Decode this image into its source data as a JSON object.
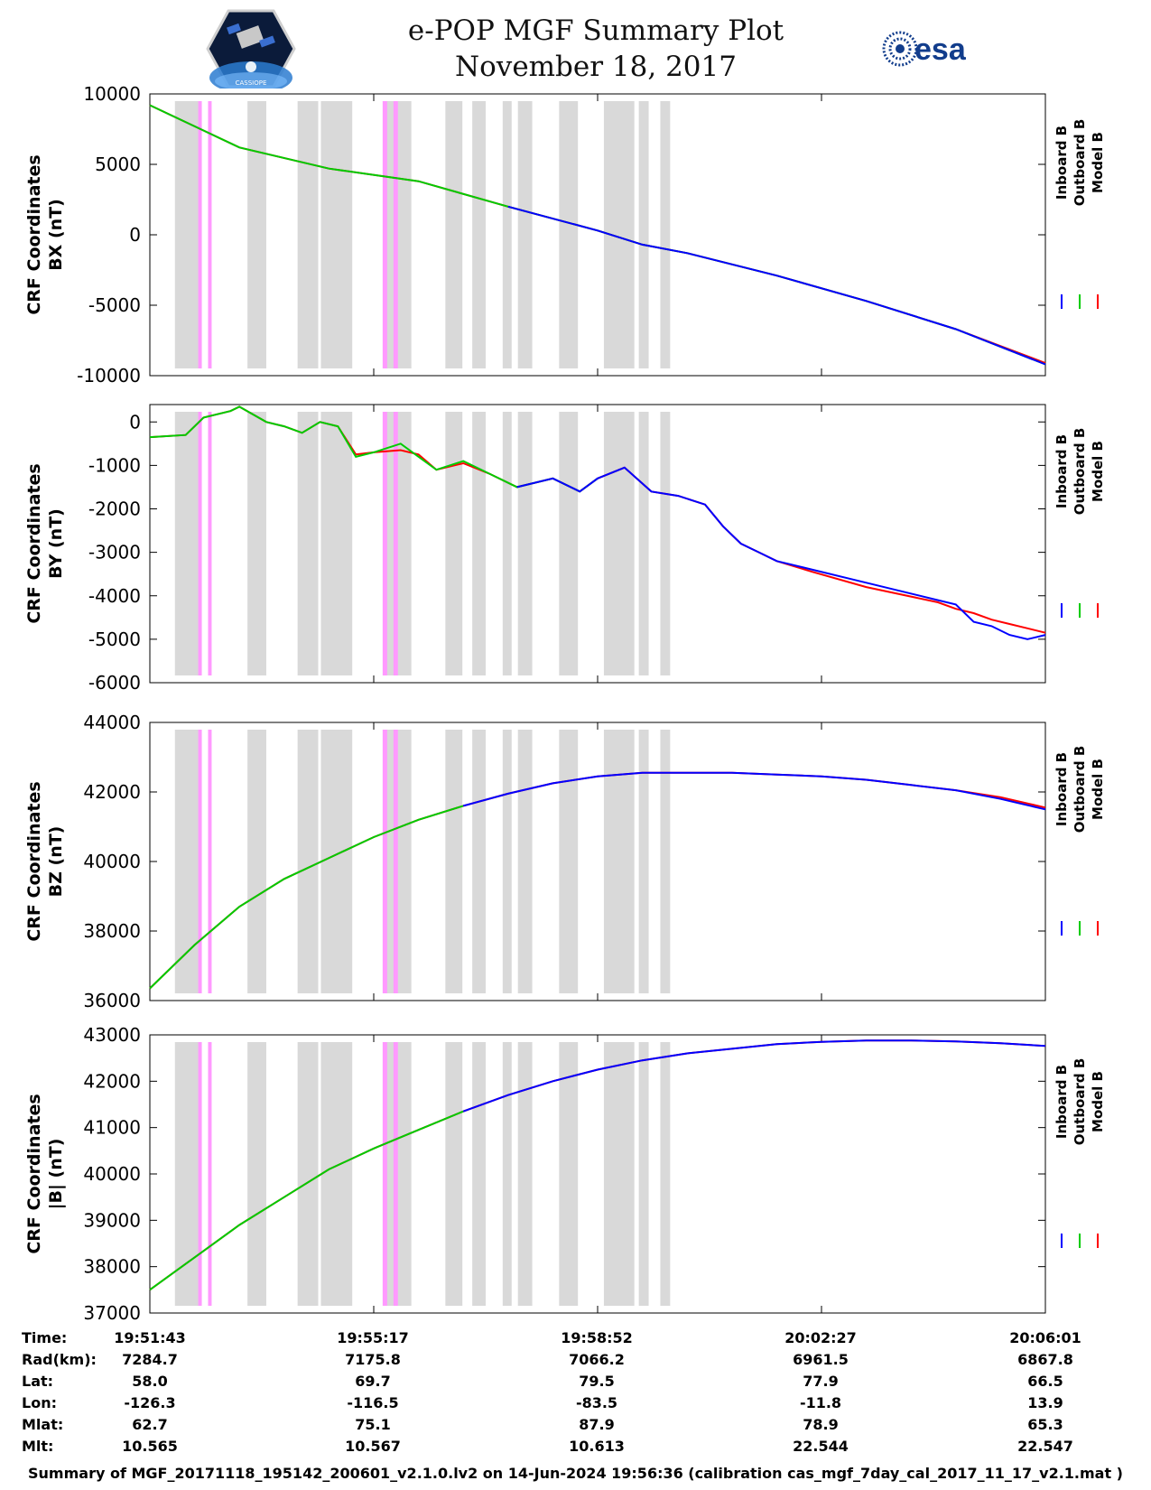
{
  "header": {
    "title": "e-POP MGF Summary Plot",
    "date": "November 18, 2017",
    "logo_left": "CASSIOPE",
    "logo_right": "esa"
  },
  "colors": {
    "inboard": "#0000ff",
    "outboard": "#00cc00",
    "model": "#ff0000",
    "gray_band": "#d9d9d9",
    "pink_band": "#ff99ff"
  },
  "legend": [
    "Inboard B",
    "Outboard B",
    "Model B"
  ],
  "chart_data": [
    {
      "type": "line",
      "panel": "bx",
      "ylabel": [
        "CRF Coordinates",
        "BX (nT)"
      ],
      "ylim": [
        -10000,
        10000
      ],
      "yticks": [
        10000,
        5000,
        0,
        -5000,
        -10000
      ],
      "tick_labels": [
        "10000",
        "5000",
        "0",
        "-5000",
        "-10000"
      ],
      "x": [
        0,
        0.05,
        0.1,
        0.2,
        0.3,
        0.4,
        0.5,
        0.55,
        0.6,
        0.7,
        0.8,
        0.9,
        1.0
      ],
      "series": [
        {
          "name": "Outboard B",
          "values": [
            9200,
            7700,
            6200,
            4700,
            3800,
            2000,
            300,
            -700,
            -1300,
            -2900,
            -4700,
            -6700,
            -9200
          ]
        },
        {
          "name": "Inboard B",
          "values": [
            null,
            null,
            null,
            null,
            null,
            2000,
            300,
            -700,
            -1300,
            -2900,
            -4700,
            -6700,
            -9200
          ]
        },
        {
          "name": "Model B",
          "values": [
            9200,
            7700,
            6200,
            4700,
            3800,
            2000,
            300,
            -700,
            -1300,
            -2900,
            -4700,
            -6700,
            -9100
          ]
        }
      ]
    },
    {
      "type": "line",
      "panel": "by",
      "ylabel": [
        "CRF Coordinates",
        "BY (nT)"
      ],
      "ylim": [
        -6000,
        400
      ],
      "yticks": [
        0,
        -1000,
        -2000,
        -3000,
        -4000,
        -5000,
        -6000
      ],
      "tick_labels": [
        "0",
        "-1000",
        "-2000",
        "-3000",
        "-4000",
        "-5000",
        "-6000"
      ],
      "x": [
        0,
        0.04,
        0.06,
        0.09,
        0.1,
        0.13,
        0.15,
        0.17,
        0.19,
        0.21,
        0.23,
        0.25,
        0.28,
        0.3,
        0.32,
        0.35,
        0.38,
        0.41,
        0.45,
        0.48,
        0.5,
        0.53,
        0.56,
        0.59,
        0.62,
        0.64,
        0.66,
        0.68,
        0.7,
        0.74,
        0.8,
        0.88,
        0.9,
        0.92,
        0.94,
        0.96,
        0.98,
        1.0
      ],
      "series": [
        {
          "name": "Outboard B",
          "values": [
            -350,
            -300,
            100,
            250,
            350,
            0,
            -100,
            -250,
            0,
            -100,
            -800,
            -700,
            -500,
            -800,
            -1100,
            -900,
            -1200,
            -1500,
            -1300,
            -1600,
            -1300,
            null,
            null,
            null,
            null,
            null,
            null,
            null,
            null,
            null,
            null,
            null,
            null,
            null,
            null,
            null,
            null,
            null
          ]
        },
        {
          "name": "Inboard B",
          "values": [
            null,
            null,
            null,
            null,
            null,
            null,
            null,
            null,
            null,
            null,
            null,
            null,
            null,
            null,
            null,
            null,
            null,
            -1500,
            -1300,
            -1600,
            -1300,
            -1050,
            -1600,
            -1700,
            -1900,
            -2400,
            -2800,
            -3000,
            -3200,
            -3400,
            -3700,
            -4100,
            -4200,
            -4600,
            -4700,
            -4900,
            -5000,
            -4900
          ]
        },
        {
          "name": "Model B",
          "values": [
            -350,
            -300,
            100,
            250,
            350,
            0,
            -100,
            -250,
            0,
            -100,
            -750,
            -700,
            -650,
            -750,
            -1100,
            -950,
            -1200,
            -1500,
            -1300,
            -1600,
            -1300,
            -1050,
            -1600,
            -1700,
            -1900,
            -2400,
            -2800,
            -3000,
            -3200,
            -3450,
            -3800,
            -4150,
            -4300,
            -4400,
            -4550,
            -4650,
            -4750,
            -4850
          ]
        }
      ]
    },
    {
      "type": "line",
      "panel": "bz",
      "ylabel": [
        "CRF Coordinates",
        "BZ (nT)"
      ],
      "ylim": [
        36000,
        44000
      ],
      "yticks": [
        44000,
        42000,
        40000,
        38000,
        36000
      ],
      "tick_labels": [
        "44000",
        "42000",
        "40000",
        "38000",
        "36000"
      ],
      "x": [
        0,
        0.05,
        0.1,
        0.15,
        0.2,
        0.25,
        0.3,
        0.35,
        0.4,
        0.45,
        0.5,
        0.55,
        0.6,
        0.65,
        0.7,
        0.75,
        0.8,
        0.85,
        0.9,
        0.95,
        1.0
      ],
      "series": [
        {
          "name": "Outboard B",
          "values": [
            36350,
            37600,
            38700,
            39500,
            40100,
            40700,
            41200,
            41600,
            null,
            null,
            null,
            null,
            null,
            null,
            null,
            null,
            null,
            null,
            null,
            null,
            null
          ]
        },
        {
          "name": "Inboard B",
          "values": [
            null,
            null,
            null,
            null,
            null,
            null,
            null,
            41600,
            41950,
            42250,
            42450,
            42550,
            42550,
            42550,
            42500,
            42450,
            42350,
            42200,
            42050,
            41800,
            41500
          ]
        },
        {
          "name": "Model B",
          "values": [
            36350,
            37600,
            38700,
            39500,
            40100,
            40700,
            41200,
            41600,
            41950,
            42250,
            42450,
            42550,
            42550,
            42550,
            42500,
            42450,
            42350,
            42200,
            42050,
            41850,
            41550
          ]
        }
      ]
    },
    {
      "type": "line",
      "panel": "bmag",
      "ylabel": [
        "CRF Coordinates",
        "|B| (nT)"
      ],
      "ylim": [
        37000,
        43000
      ],
      "yticks": [
        43000,
        42000,
        41000,
        40000,
        39000,
        38000,
        37000
      ],
      "tick_labels": [
        "43000",
        "42000",
        "41000",
        "40000",
        "39000",
        "38000",
        "37000"
      ],
      "x": [
        0,
        0.05,
        0.1,
        0.15,
        0.2,
        0.25,
        0.3,
        0.35,
        0.4,
        0.45,
        0.5,
        0.55,
        0.6,
        0.65,
        0.7,
        0.75,
        0.8,
        0.85,
        0.9,
        0.95,
        1.0
      ],
      "series": [
        {
          "name": "Outboard B",
          "values": [
            37500,
            38200,
            38900,
            39500,
            40100,
            40550,
            40950,
            41350,
            null,
            null,
            null,
            null,
            null,
            null,
            null,
            null,
            null,
            null,
            null,
            null,
            null
          ]
        },
        {
          "name": "Inboard B",
          "values": [
            null,
            null,
            null,
            null,
            null,
            null,
            null,
            41350,
            41700,
            42000,
            42250,
            42450,
            42600,
            42700,
            42800,
            42850,
            42880,
            42880,
            42860,
            42820,
            42760
          ]
        },
        {
          "name": "Model B",
          "values": [
            37500,
            38200,
            38900,
            39500,
            40100,
            40550,
            40950,
            41350,
            41700,
            42000,
            42250,
            42450,
            42600,
            42700,
            42800,
            42850,
            42880,
            42880,
            42860,
            42820,
            42760
          ]
        }
      ]
    }
  ],
  "bands": {
    "gray": [
      [
        0.028,
        0.058
      ],
      [
        0.109,
        0.13
      ],
      [
        0.165,
        0.188
      ],
      [
        0.191,
        0.226
      ],
      [
        0.26,
        0.292
      ],
      [
        0.33,
        0.349
      ],
      [
        0.36,
        0.375
      ],
      [
        0.394,
        0.404
      ],
      [
        0.411,
        0.427
      ],
      [
        0.457,
        0.478
      ],
      [
        0.507,
        0.541
      ],
      [
        0.546,
        0.557
      ],
      [
        0.57,
        0.581
      ]
    ],
    "pink": [
      [
        0.054,
        0.058
      ],
      [
        0.065,
        0.069
      ],
      [
        0.26,
        0.265
      ],
      [
        0.272,
        0.277
      ]
    ]
  },
  "x_ticks": [
    0,
    0.25,
    0.5,
    0.75,
    1.0
  ],
  "footer": {
    "rows": [
      {
        "label": "Time:",
        "values": [
          "19:51:43",
          "19:55:17",
          "19:58:52",
          "20:02:27",
          "20:06:01"
        ]
      },
      {
        "label": "Rad(km):",
        "values": [
          "7284.7",
          "7175.8",
          "7066.2",
          "6961.5",
          "6867.8"
        ]
      },
      {
        "label": "Lat:",
        "values": [
          "58.0",
          "69.7",
          "79.5",
          "77.9",
          "66.5"
        ]
      },
      {
        "label": "Lon:",
        "values": [
          "-126.3",
          "-116.5",
          "-83.5",
          "-11.8",
          "13.9"
        ]
      },
      {
        "label": "Mlat:",
        "values": [
          "62.7",
          "75.1",
          "87.9",
          "78.9",
          "65.3"
        ]
      },
      {
        "label": "Mlt:",
        "values": [
          "10.565",
          "10.567",
          "10.613",
          "22.544",
          "22.547"
        ]
      }
    ],
    "summary": "Summary of MGF_20171118_195142_200601_v2.1.0.lv2 on 14-Jun-2024 19:56:36 (calibration cas_mgf_7day_cal_2017_11_17_v2.1.mat )"
  }
}
